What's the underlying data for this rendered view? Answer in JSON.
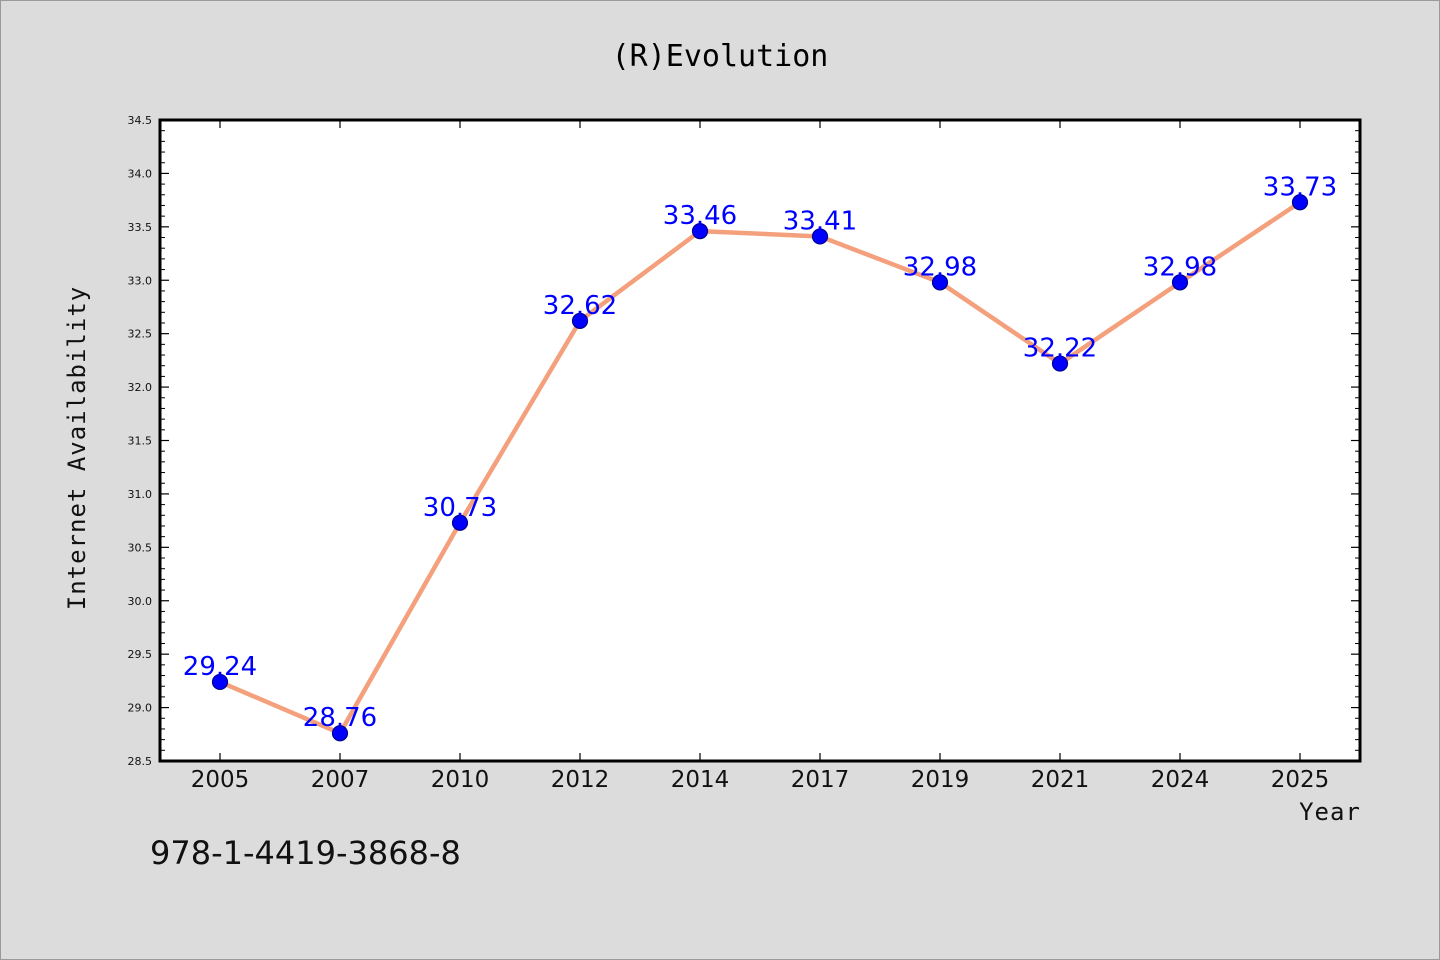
{
  "chart_data": {
    "type": "line",
    "title": "(R)Evolution",
    "xlabel": "Year",
    "ylabel": "Internet Availability",
    "categories": [
      "2005",
      "2007",
      "2010",
      "2012",
      "2014",
      "2017",
      "2019",
      "2021",
      "2024",
      "2025"
    ],
    "series": [
      {
        "values": [
          29.24,
          28.76,
          30.73,
          32.62,
          33.46,
          33.41,
          32.98,
          32.22,
          32.98,
          33.73
        ],
        "data_labels": [
          "29.24",
          "28.76",
          "30.73",
          "32.62",
          "33.46",
          "33.41",
          "32.98",
          "32.22",
          "32.98",
          "33.73"
        ]
      }
    ],
    "ylim": [
      28.5,
      34.5
    ],
    "yticks": [
      "28.5",
      "29.0",
      "29.5",
      "30.0",
      "30.5",
      "31.0",
      "31.5",
      "32.0",
      "32.5",
      "33.0",
      "33.5",
      "34.0",
      "34.5"
    ],
    "grid": false,
    "legend": "none",
    "colors": {
      "line": "#f4a07c",
      "marker": "#0000ff",
      "data_label": "#0000ff",
      "background": "#dcdcdc",
      "plot_background": "#ffffff"
    }
  },
  "footer": {
    "text": "978-1-4419-3868-8"
  }
}
